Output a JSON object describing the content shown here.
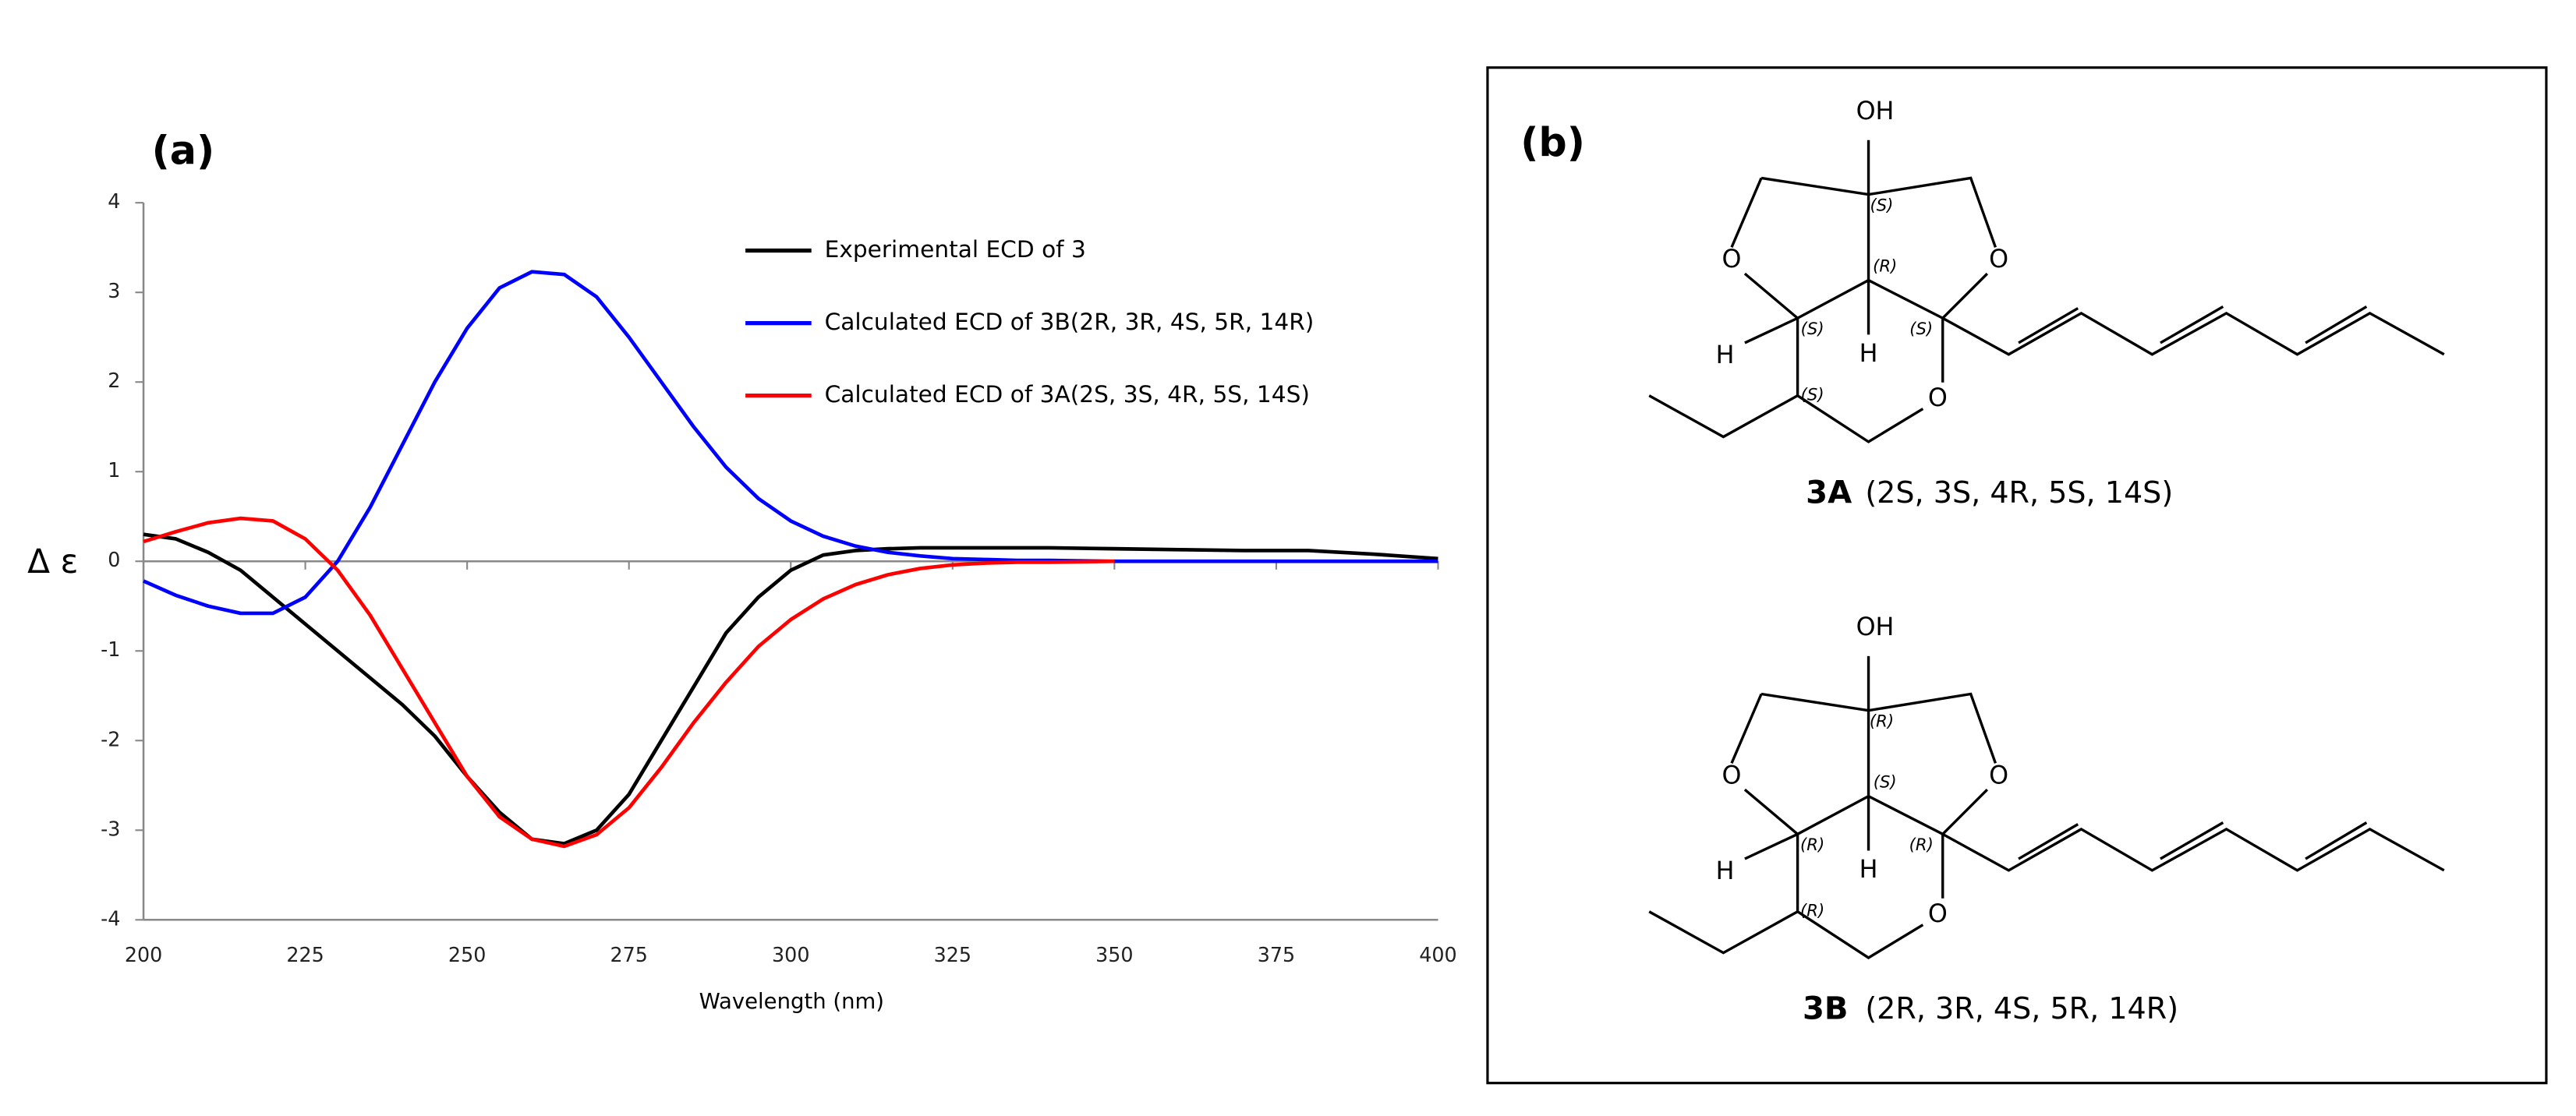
{
  "chart_data": {
    "type": "line",
    "title": "(a)",
    "x_label": "Wavelength (nm)",
    "y_label": "Δ ε",
    "x": [
      200,
      205,
      210,
      215,
      220,
      225,
      230,
      235,
      240,
      245,
      250,
      255,
      260,
      265,
      270,
      275,
      280,
      285,
      290,
      295,
      300,
      305,
      310,
      315,
      320,
      325,
      330,
      335,
      340,
      350,
      360,
      370,
      380,
      390,
      400
    ],
    "series": [
      {
        "name": "Experimental ECD of 3",
        "color": "#000000",
        "values": [
          0.3,
          0.25,
          0.1,
          -0.1,
          -0.4,
          -0.7,
          -1.0,
          -1.3,
          -1.6,
          -1.95,
          -2.4,
          -2.8,
          -3.1,
          -3.15,
          -3.0,
          -2.6,
          -2.0,
          -1.4,
          -0.8,
          -0.4,
          -0.1,
          0.07,
          0.12,
          0.14,
          0.15,
          0.15,
          0.15,
          0.15,
          0.15,
          0.14,
          0.13,
          0.12,
          0.12,
          0.08,
          0.03
        ]
      },
      {
        "name": "Calculated ECD of 3B(2R, 3R, 4S, 5R, 14R)",
        "color": "#0000ff",
        "values": [
          -0.22,
          -0.38,
          -0.5,
          -0.58,
          -0.58,
          -0.4,
          0.0,
          0.6,
          1.3,
          2.0,
          2.6,
          3.05,
          3.23,
          3.2,
          2.95,
          2.5,
          2.0,
          1.5,
          1.05,
          0.7,
          0.45,
          0.28,
          0.17,
          0.1,
          0.06,
          0.03,
          0.02,
          0.01,
          0.01,
          0,
          0,
          0,
          0,
          0,
          0
        ]
      },
      {
        "name": "Calculated ECD of 3A(2S, 3S, 4R, 5S, 14S)",
        "color": "#ff0000",
        "values": [
          0.22,
          0.33,
          0.43,
          0.48,
          0.45,
          0.25,
          -0.1,
          -0.6,
          -1.2,
          -1.8,
          -2.4,
          -2.85,
          -3.1,
          -3.18,
          -3.05,
          -2.75,
          -2.3,
          -1.8,
          -1.35,
          -0.95,
          -0.65,
          -0.42,
          -0.26,
          -0.15,
          -0.08,
          -0.04,
          -0.02,
          -0.01,
          -0.01,
          0,
          null,
          null,
          null,
          null,
          null
        ]
      }
    ],
    "xlim": [
      200,
      400
    ],
    "ylim": [
      -4,
      4
    ],
    "xticks": [
      200,
      225,
      250,
      275,
      300,
      325,
      350,
      375,
      400
    ],
    "yticks": [
      -4,
      -3,
      -2,
      -1,
      0,
      1,
      2,
      3,
      4
    ]
  },
  "panel_b": {
    "label": "(b)",
    "structures": [
      {
        "name": "3A",
        "color": "#ff0000",
        "config": "(2S, 3S, 4R, 5S, 14S)",
        "atoms": [
          "OH",
          "O",
          "O",
          "O",
          "H",
          "H"
        ],
        "stereo": [
          "(S)",
          "(R)",
          "(S)",
          "(S)",
          "(S)"
        ]
      },
      {
        "name": "3B",
        "color": "#0000ff",
        "config": "(2R, 3R, 4S, 5R, 14R)",
        "atoms": [
          "OH",
          "O",
          "O",
          "O",
          "H",
          "H"
        ],
        "stereo": [
          "(R)",
          "(S)",
          "(R)",
          "(R)",
          "(R)"
        ]
      }
    ]
  }
}
